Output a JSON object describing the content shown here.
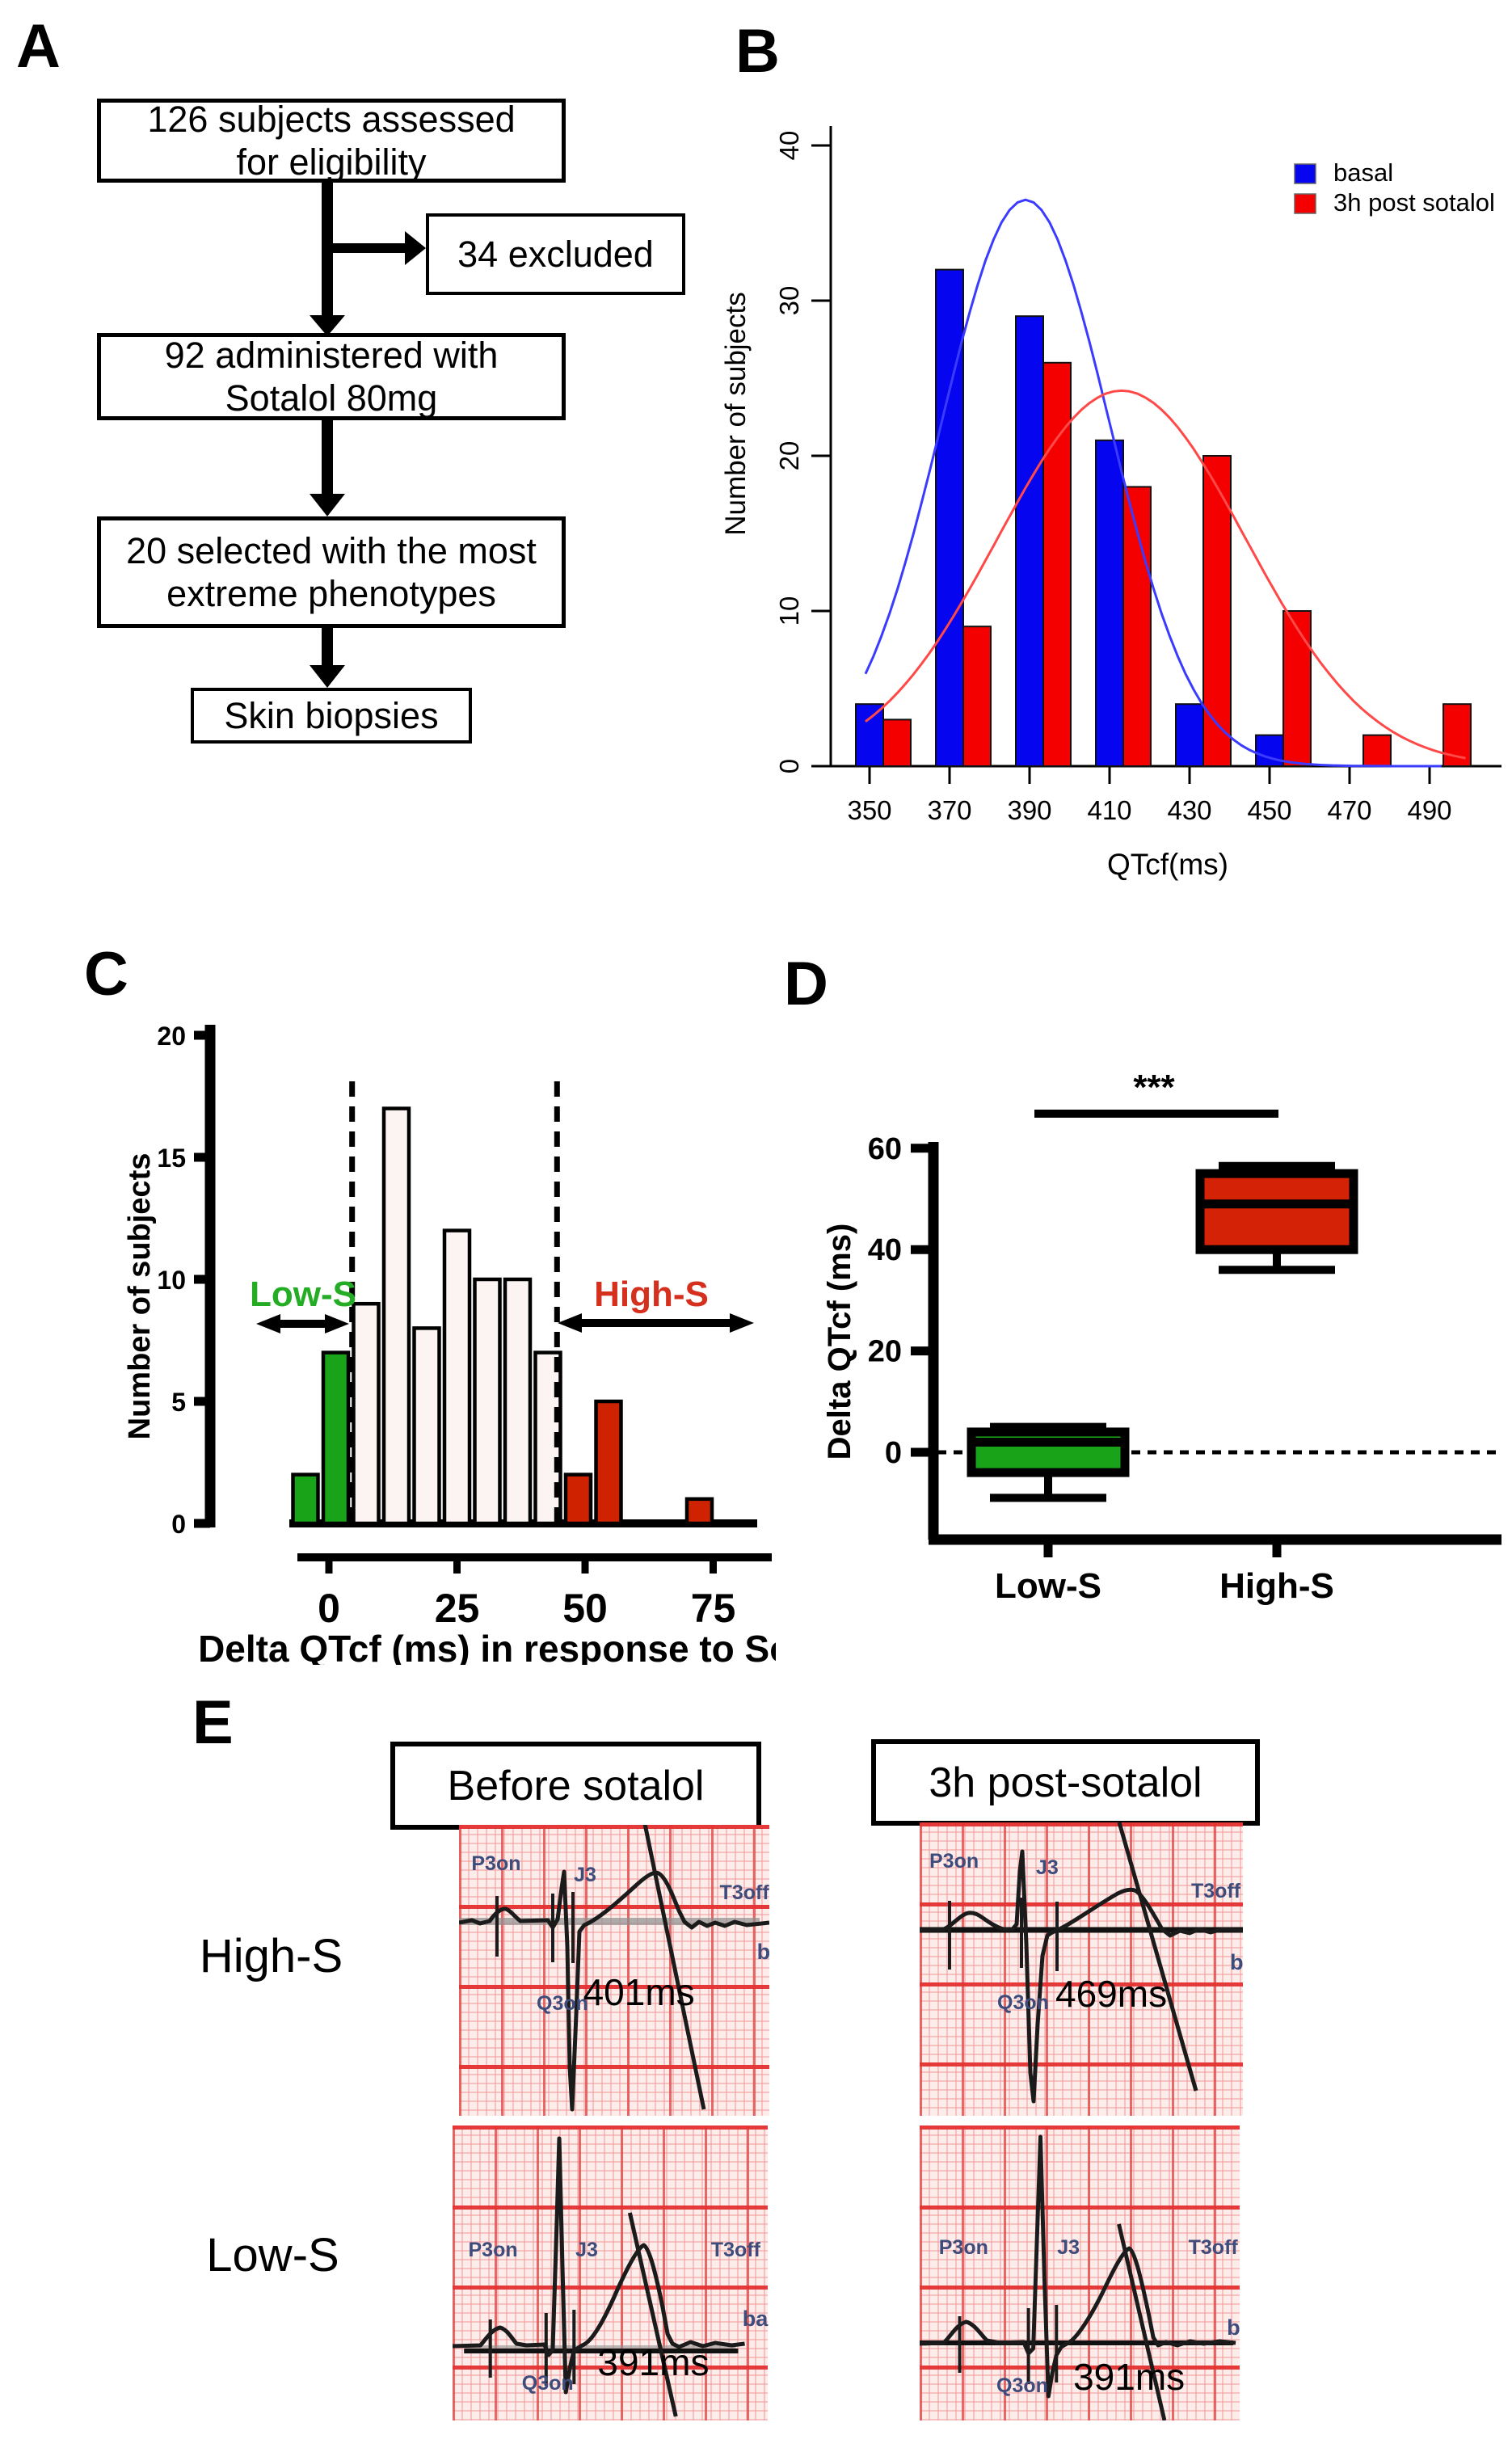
{
  "panel_a": {
    "label": "A",
    "boxes": [
      {
        "id": "eligibility",
        "text": "126 subjects assessed\nfor eligibility"
      },
      {
        "id": "excluded",
        "text": "34 excluded"
      },
      {
        "id": "administered",
        "text": "92 administered with\nSotalol 80mg"
      },
      {
        "id": "selected",
        "text": "20 selected with the most\nextreme phenotypes"
      },
      {
        "id": "biopsies",
        "text": "Skin biopsies"
      }
    ]
  },
  "chart_data": [
    {
      "id": "B",
      "panel_label": "B",
      "type": "bar",
      "xlabel": "QTcf(ms)",
      "ylabel": "Number of subjects",
      "categories": [
        350,
        370,
        390,
        410,
        430,
        450,
        470,
        490
      ],
      "bin_width_ms": 20,
      "series": [
        {
          "name": "basal",
          "color": "#0505F0",
          "values": [
            4,
            32,
            29,
            21,
            4,
            2,
            0,
            0
          ]
        },
        {
          "name": "3h post sotalol",
          "color": "#F50000",
          "values": [
            3,
            9,
            26,
            18,
            20,
            10,
            2,
            4
          ]
        }
      ],
      "curves": [
        {
          "series": "basal",
          "color": "#3B3BFF",
          "mean": 389,
          "sd": 21,
          "peak": 36.5,
          "range": [
            349,
            493
          ]
        },
        {
          "series": "3h post sotalol",
          "color": "#FF4848",
          "mean": 413,
          "sd": 31,
          "peak": 24.2,
          "range": [
            349,
            499
          ]
        }
      ],
      "ylim": [
        0,
        40
      ],
      "yticks": [
        0,
        10,
        20,
        30,
        40
      ],
      "grid": false,
      "legend_position": "top-right"
    },
    {
      "id": "C",
      "panel_label": "C",
      "type": "bar",
      "xlabel": "Delta QTcf (ms) in response to Sotalol",
      "ylabel": "Number of subjects",
      "xticks": [
        0,
        25,
        50,
        75
      ],
      "ylim": [
        0,
        20
      ],
      "yticks": [
        0,
        5,
        10,
        15,
        20
      ],
      "bin_width_ms": 6,
      "bars": [
        {
          "slot": 0,
          "value": 2,
          "group": "low"
        },
        {
          "slot": 1,
          "value": 7,
          "group": "low"
        },
        {
          "slot": 2,
          "value": 9,
          "group": "mid"
        },
        {
          "slot": 3,
          "value": 17,
          "group": "mid"
        },
        {
          "slot": 4,
          "value": 8,
          "group": "mid"
        },
        {
          "slot": 5,
          "value": 12,
          "group": "mid"
        },
        {
          "slot": 6,
          "value": 10,
          "group": "mid"
        },
        {
          "slot": 7,
          "value": 10,
          "group": "mid"
        },
        {
          "slot": 8,
          "value": 7,
          "group": "mid"
        },
        {
          "slot": 9,
          "value": 2,
          "group": "high"
        },
        {
          "slot": 10,
          "value": 5,
          "group": "high"
        },
        {
          "slot": 13,
          "value": 1,
          "group": "high"
        }
      ],
      "group_colors": {
        "low": "#18A318",
        "mid": "#FBF4F2",
        "high": "#CE2200"
      },
      "threshold_lines_ms": [
        5,
        45
      ],
      "annotations": [
        {
          "text": "Low-S",
          "color": "#24AD24",
          "side": "left"
        },
        {
          "text": "High-S",
          "color": "#D5301E",
          "side": "right"
        }
      ]
    },
    {
      "id": "D",
      "panel_label": "D",
      "type": "box",
      "ylabel": "Delta QTcf (ms)",
      "yticks": [
        0,
        20,
        40,
        60
      ],
      "categories": [
        "Low-S",
        "High-S"
      ],
      "boxes": [
        {
          "name": "Low-S",
          "color": "#18A318",
          "min": -9,
          "q1": -4,
          "median": 2,
          "q3": 4,
          "max": 5
        },
        {
          "name": "High-S",
          "color": "#D32205",
          "min": 36,
          "q1": 40,
          "median": 49,
          "q3": 55,
          "max": 56.5
        }
      ],
      "zero_line": true,
      "significance": {
        "label": "***",
        "between": [
          "Low-S",
          "High-S"
        ]
      }
    }
  ],
  "panel_e": {
    "label": "E",
    "col_headers": [
      "Before sotalol",
      "3h post-sotalol"
    ],
    "row_labels": [
      "High-S",
      "Low-S"
    ],
    "ecgs": [
      {
        "row": "High-S",
        "col": "Before sotalol",
        "qtc": "401ms",
        "markers": {
          "p": "P3on",
          "j": "J3",
          "t": "T3off",
          "q": "Q3on"
        },
        "edge_label": "b"
      },
      {
        "row": "High-S",
        "col": "3h post-sotalol",
        "qtc": "469ms",
        "markers": {
          "p": "P3on",
          "j": "J3",
          "t": "T3off",
          "q": "Q3on"
        },
        "edge_label": "b"
      },
      {
        "row": "Low-S",
        "col": "Before sotalol",
        "qtc": "391ms",
        "markers": {
          "p": "P3on",
          "j": "J3",
          "t": "T3off",
          "q": "Q3on"
        },
        "edge_label": "ba"
      },
      {
        "row": "Low-S",
        "col": "3h post-sotalol",
        "qtc": "391ms",
        "markers": {
          "p": "P3on",
          "j": "J3",
          "t": "T3off",
          "q": "Q3on"
        },
        "edge_label": "b"
      }
    ]
  }
}
